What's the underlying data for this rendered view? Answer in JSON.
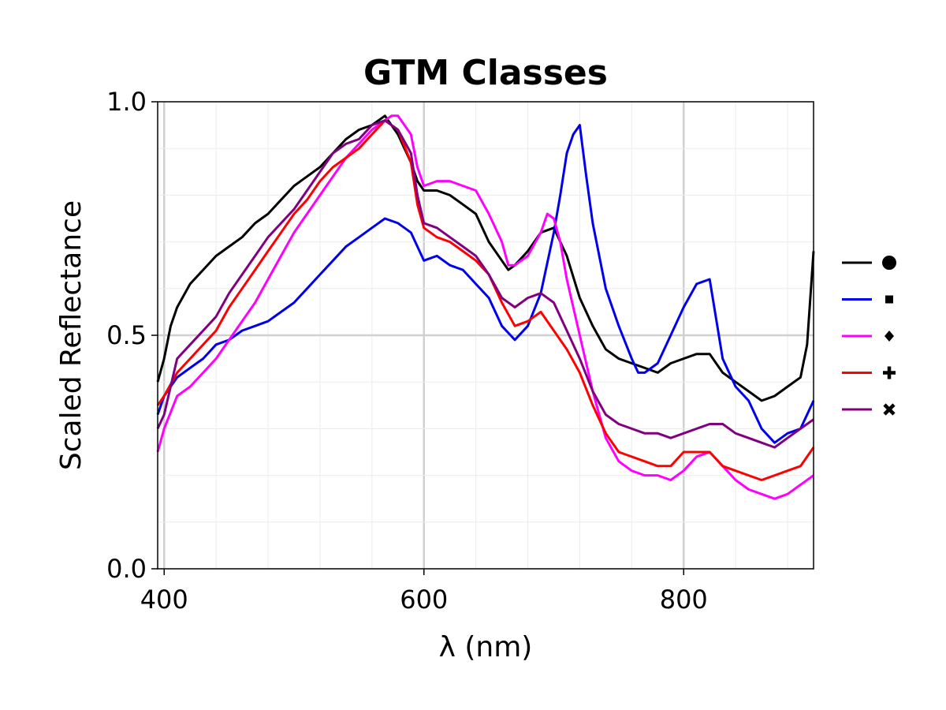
{
  "chart_data": {
    "type": "line",
    "title": "GTM Classes",
    "xlabel": "λ (nm)",
    "ylabel": "Scaled Reflectance",
    "xlim": [
      395,
      900
    ],
    "ylim": [
      0.0,
      1.0
    ],
    "xticks": [
      {
        "value": 400,
        "label": "400"
      },
      {
        "value": 600,
        "label": "600"
      },
      {
        "value": 800,
        "label": "800"
      }
    ],
    "yticks": [
      {
        "value": 0.0,
        "label": "0.0"
      },
      {
        "value": 0.5,
        "label": "0.5"
      },
      {
        "value": 1.0,
        "label": "1.0"
      }
    ],
    "grid": true,
    "legend": "right",
    "series": [
      {
        "marker": "circle",
        "color": "#000000",
        "x": [
          395,
          400,
          405,
          410,
          420,
          430,
          440,
          450,
          460,
          470,
          480,
          490,
          500,
          510,
          520,
          530,
          540,
          550,
          560,
          570,
          580,
          590,
          595,
          600,
          610,
          620,
          630,
          640,
          650,
          660,
          665,
          670,
          680,
          690,
          700,
          710,
          720,
          730,
          740,
          750,
          760,
          770,
          780,
          790,
          800,
          810,
          820,
          830,
          840,
          850,
          860,
          870,
          880,
          890,
          895,
          900
        ],
        "y": [
          0.4,
          0.45,
          0.52,
          0.56,
          0.61,
          0.64,
          0.67,
          0.69,
          0.71,
          0.74,
          0.76,
          0.79,
          0.82,
          0.84,
          0.86,
          0.89,
          0.92,
          0.94,
          0.95,
          0.97,
          0.93,
          0.87,
          0.83,
          0.81,
          0.81,
          0.8,
          0.78,
          0.76,
          0.7,
          0.66,
          0.64,
          0.65,
          0.68,
          0.72,
          0.73,
          0.67,
          0.58,
          0.52,
          0.47,
          0.45,
          0.44,
          0.43,
          0.42,
          0.44,
          0.45,
          0.46,
          0.46,
          0.42,
          0.4,
          0.38,
          0.36,
          0.37,
          0.39,
          0.41,
          0.48,
          0.68
        ]
      },
      {
        "marker": "square",
        "color": "#0000ee",
        "x": [
          395,
          400,
          410,
          420,
          430,
          440,
          450,
          460,
          470,
          480,
          490,
          500,
          510,
          520,
          530,
          540,
          550,
          560,
          570,
          580,
          590,
          595,
          600,
          610,
          620,
          630,
          640,
          650,
          660,
          670,
          680,
          690,
          700,
          705,
          710,
          715,
          720,
          725,
          730,
          740,
          750,
          760,
          765,
          770,
          780,
          790,
          800,
          810,
          820,
          830,
          840,
          850,
          860,
          870,
          880,
          890,
          900
        ],
        "y": [
          0.33,
          0.37,
          0.41,
          0.43,
          0.45,
          0.48,
          0.49,
          0.51,
          0.52,
          0.53,
          0.55,
          0.57,
          0.6,
          0.63,
          0.66,
          0.69,
          0.71,
          0.73,
          0.75,
          0.74,
          0.72,
          0.69,
          0.66,
          0.67,
          0.65,
          0.64,
          0.61,
          0.58,
          0.52,
          0.49,
          0.52,
          0.59,
          0.72,
          0.8,
          0.89,
          0.93,
          0.95,
          0.84,
          0.74,
          0.6,
          0.52,
          0.45,
          0.42,
          0.42,
          0.44,
          0.5,
          0.56,
          0.61,
          0.62,
          0.45,
          0.39,
          0.36,
          0.3,
          0.27,
          0.29,
          0.3,
          0.36
        ]
      },
      {
        "marker": "diamond",
        "color": "#ff00ff",
        "x": [
          395,
          400,
          410,
          420,
          430,
          440,
          450,
          460,
          470,
          480,
          490,
          500,
          510,
          520,
          530,
          540,
          550,
          560,
          570,
          575,
          580,
          590,
          595,
          600,
          610,
          620,
          630,
          640,
          650,
          660,
          665,
          670,
          680,
          690,
          695,
          700,
          705,
          710,
          720,
          730,
          740,
          750,
          760,
          770,
          780,
          790,
          800,
          810,
          820,
          830,
          840,
          850,
          860,
          870,
          880,
          890,
          900
        ],
        "y": [
          0.25,
          0.3,
          0.37,
          0.39,
          0.42,
          0.45,
          0.49,
          0.53,
          0.57,
          0.62,
          0.67,
          0.72,
          0.76,
          0.8,
          0.84,
          0.88,
          0.91,
          0.94,
          0.96,
          0.97,
          0.97,
          0.93,
          0.86,
          0.82,
          0.83,
          0.83,
          0.82,
          0.81,
          0.76,
          0.7,
          0.65,
          0.65,
          0.67,
          0.72,
          0.76,
          0.75,
          0.7,
          0.62,
          0.5,
          0.38,
          0.28,
          0.23,
          0.21,
          0.2,
          0.2,
          0.19,
          0.21,
          0.24,
          0.25,
          0.22,
          0.19,
          0.17,
          0.16,
          0.15,
          0.16,
          0.18,
          0.2
        ]
      },
      {
        "marker": "plus",
        "color": "#ff0000",
        "x": [
          395,
          400,
          410,
          420,
          430,
          440,
          450,
          460,
          470,
          480,
          490,
          500,
          510,
          520,
          530,
          540,
          550,
          560,
          570,
          580,
          590,
          595,
          600,
          610,
          620,
          630,
          640,
          650,
          660,
          670,
          680,
          690,
          700,
          710,
          720,
          730,
          740,
          750,
          760,
          770,
          780,
          790,
          800,
          810,
          820,
          830,
          840,
          850,
          860,
          870,
          880,
          890,
          900
        ],
        "y": [
          0.35,
          0.37,
          0.42,
          0.45,
          0.48,
          0.51,
          0.56,
          0.6,
          0.64,
          0.68,
          0.72,
          0.76,
          0.79,
          0.83,
          0.86,
          0.88,
          0.9,
          0.93,
          0.96,
          0.94,
          0.87,
          0.78,
          0.73,
          0.71,
          0.7,
          0.68,
          0.66,
          0.63,
          0.57,
          0.52,
          0.53,
          0.55,
          0.51,
          0.47,
          0.42,
          0.35,
          0.29,
          0.25,
          0.24,
          0.23,
          0.22,
          0.22,
          0.25,
          0.25,
          0.25,
          0.22,
          0.21,
          0.2,
          0.19,
          0.2,
          0.21,
          0.22,
          0.26
        ]
      },
      {
        "marker": "x",
        "color": "#800080",
        "x": [
          395,
          400,
          410,
          420,
          430,
          440,
          450,
          460,
          470,
          480,
          490,
          500,
          510,
          520,
          530,
          540,
          550,
          560,
          570,
          580,
          590,
          595,
          600,
          610,
          620,
          630,
          640,
          650,
          660,
          670,
          680,
          690,
          700,
          710,
          720,
          730,
          740,
          750,
          760,
          770,
          780,
          790,
          800,
          810,
          820,
          830,
          840,
          850,
          860,
          870,
          880,
          890,
          900
        ],
        "y": [
          0.3,
          0.33,
          0.45,
          0.48,
          0.51,
          0.54,
          0.59,
          0.63,
          0.67,
          0.71,
          0.74,
          0.77,
          0.81,
          0.85,
          0.89,
          0.91,
          0.92,
          0.95,
          0.96,
          0.94,
          0.89,
          0.8,
          0.74,
          0.73,
          0.71,
          0.69,
          0.67,
          0.63,
          0.58,
          0.56,
          0.58,
          0.59,
          0.57,
          0.51,
          0.45,
          0.38,
          0.33,
          0.31,
          0.3,
          0.29,
          0.29,
          0.28,
          0.29,
          0.3,
          0.31,
          0.31,
          0.29,
          0.28,
          0.27,
          0.26,
          0.28,
          0.3,
          0.32
        ]
      }
    ]
  }
}
